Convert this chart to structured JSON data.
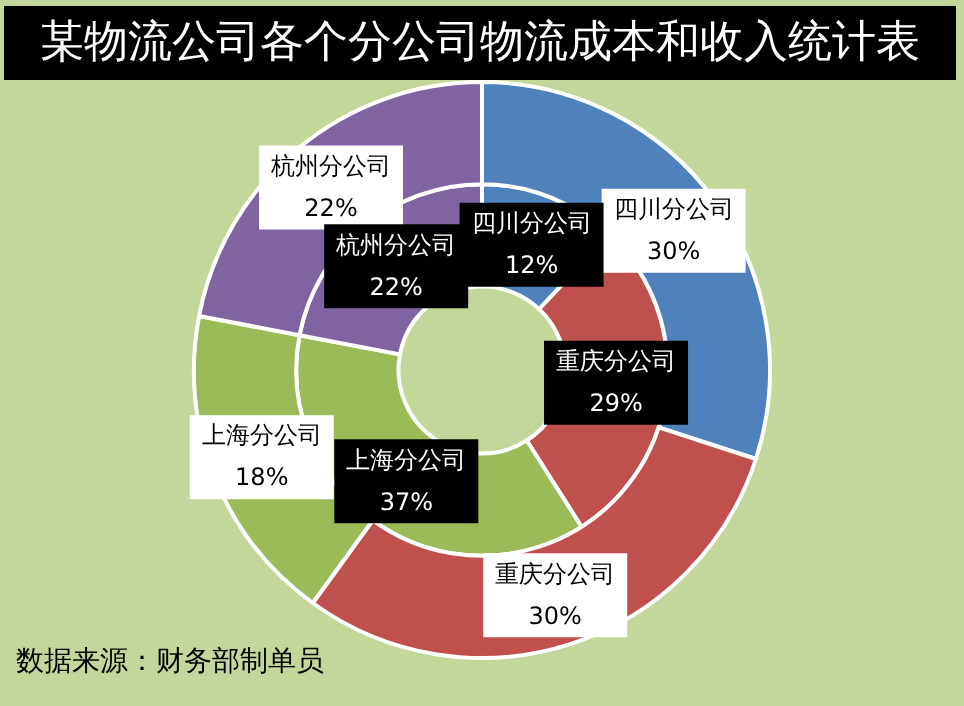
{
  "chart_data": {
    "type": "donut",
    "title": "某物流公司各个分公司物流成本和收入统计表",
    "categories": [
      "四川分公司",
      "重庆分公司",
      "上海分公司",
      "杭州分公司"
    ],
    "colors": [
      "#4f81bd",
      "#c0504d",
      "#9bbb59",
      "#8064a2"
    ],
    "series": [
      {
        "values": [
          30,
          30,
          18,
          22
        ],
        "value_labels": [
          "30%",
          "30%",
          "18%",
          "22%"
        ]
      },
      {
        "values": [
          12,
          29,
          37,
          22
        ],
        "value_labels": [
          "12%",
          "29%",
          "37%",
          "22%"
        ]
      }
    ],
    "legend": false,
    "annotations": [
      "数据来源：财务部制单员"
    ]
  }
}
